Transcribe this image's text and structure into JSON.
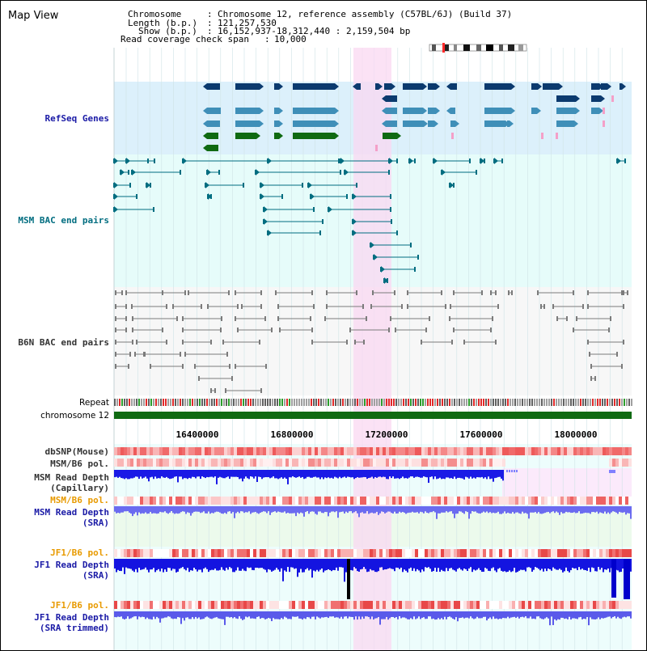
{
  "header": {
    "title": "Map View",
    "info": [
      {
        "label": "Chromosome",
        "value": "Chromosome 12, reference assembly (C57BL/6J) (Build 37)"
      },
      {
        "label": "Length (b.p.)",
        "value": "121,257,530"
      },
      {
        "label": "Show (b.p.)",
        "value": "16,152,937-18,312,440 : 2,159,504 bp"
      },
      {
        "label": "Read coverage check span",
        "value": "10,000"
      }
    ]
  },
  "axis": {
    "chromosome_label": "chromosome 12",
    "ticks": [
      "16400000",
      "16800000",
      "17200000",
      "17600000",
      "18000000"
    ]
  },
  "tracks": {
    "refseq": "RefSeq Genes",
    "msm_bac": "MSM BAC end pairs",
    "b6n_bac": "B6N BAC end pairs",
    "repeat": "Repeat",
    "dbsnp": "dbSNP(Mouse)",
    "msm_b6_pol_1": "MSM/B6 pol.",
    "msm_depth_cap": [
      "MSM Read Depth",
      "(Capillary)"
    ],
    "msm_b6_pol_2": "MSM/B6 pol.",
    "msm_depth_sra": [
      "MSM Read Depth",
      "(SRA)"
    ],
    "jf1_b6_pol_1": "JF1/B6 pol.",
    "jf1_depth_sra": [
      "JF1 Read Depth",
      "(SRA)"
    ],
    "jf1_b6_pol_2": "JF1/B6 pol.",
    "jf1_depth_trim": [
      "JF1 Read Depth",
      "(SRA trimmed)"
    ]
  },
  "colors": {
    "refseq_bg": "#dcf0fb",
    "bac_bg": "#e6fcfa",
    "highlight": "#f9d8f1",
    "label_blue": "#1a1aa6",
    "label_teal": "#006d80",
    "label_orange": "#e89a00",
    "label_gray": "#333333",
    "gene_dark": "#0b3a6e",
    "gene_mid": "#3f8fb8",
    "gene_green": "#0f6a12",
    "depth_blue": "#1010e6",
    "depth_light": "#6b6bf0"
  }
}
